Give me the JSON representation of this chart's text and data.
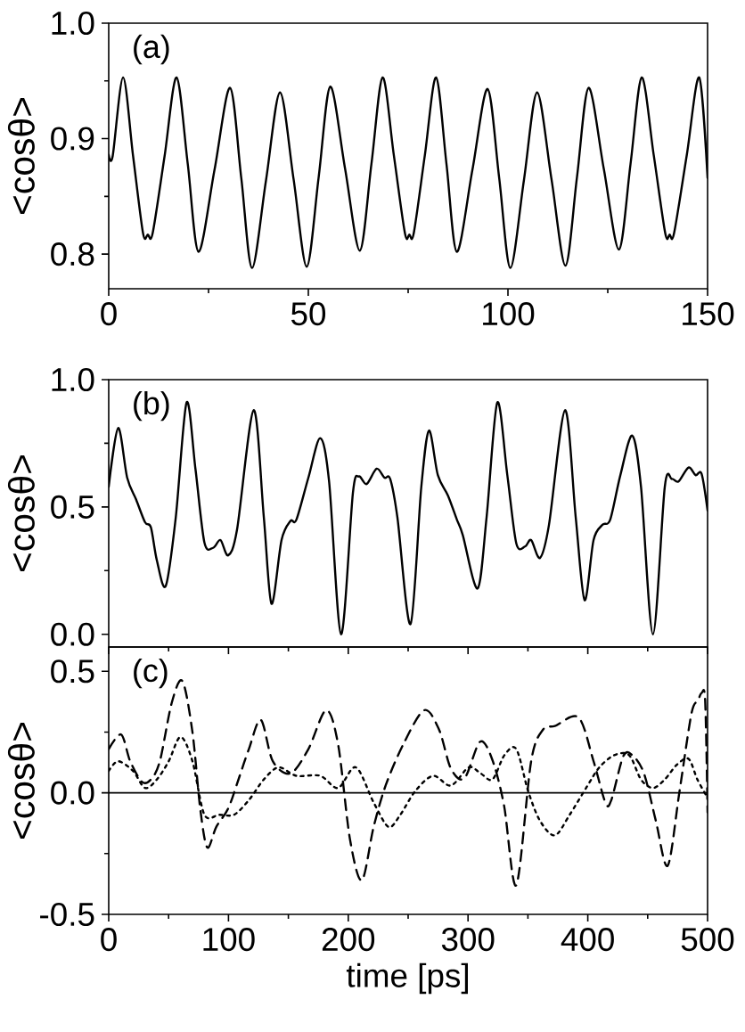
{
  "chart_data": [
    {
      "type": "line",
      "ylabel": "<cosθ>",
      "annotations": [
        "(a)"
      ],
      "xlim": [
        0,
        150
      ],
      "xticks": [
        0,
        50,
        100,
        150
      ],
      "ylim": [
        0.77,
        1.0
      ],
      "yticks": [
        {
          "value": 0.8,
          "label": "0.8"
        },
        {
          "value": 0.9,
          "label": "0.9"
        },
        {
          "value": 1.0,
          "label": "1.0"
        }
      ],
      "series": [
        {
          "color": "#000000",
          "line_style": "solid",
          "x": [
            0,
            1.0,
            3.6,
            6.1,
            8.6,
            9.8,
            11.0,
            14.0,
            17.0,
            19.8,
            22.5,
            26.5,
            30.4,
            33.2,
            35.9,
            39.4,
            42.9,
            46.3,
            49.6,
            52.6,
            55.5,
            59.2,
            62.9,
            65.8,
            68.6,
            71.4,
            74.2,
            75.3,
            76.4,
            79.2,
            82.0,
            84.6,
            87.2,
            91.1,
            94.9,
            97.8,
            100.6,
            104.0,
            107.3,
            110.9,
            114.4,
            117.3,
            120.2,
            124.0,
            127.8,
            130.7,
            133.5,
            136.5,
            139.4,
            140.5,
            141.6,
            144.8,
            147.9,
            150
          ],
          "values": [
            0.886,
            0.885,
            0.953,
            0.885,
            0.818,
            0.817,
            0.818,
            0.885,
            0.953,
            0.878,
            0.802,
            0.873,
            0.944,
            0.866,
            0.788,
            0.864,
            0.94,
            0.865,
            0.789,
            0.867,
            0.945,
            0.874,
            0.803,
            0.878,
            0.953,
            0.886,
            0.818,
            0.817,
            0.818,
            0.886,
            0.953,
            0.878,
            0.802,
            0.873,
            0.943,
            0.866,
            0.788,
            0.864,
            0.94,
            0.865,
            0.79,
            0.867,
            0.944,
            0.874,
            0.804,
            0.878,
            0.953,
            0.886,
            0.818,
            0.817,
            0.818,
            0.886,
            0.953,
            0.866
          ]
        }
      ]
    },
    {
      "type": "line",
      "ylabel": "<cosθ>",
      "annotations": [
        "(b)"
      ],
      "xlim": [
        0,
        500
      ],
      "xticks": [
        0,
        100,
        200,
        300,
        400,
        500
      ],
      "tick_labels": "y",
      "ylim": [
        -0.05,
        1.0
      ],
      "yticks": [
        {
          "value": 0.0,
          "label": "0.0"
        },
        {
          "value": 0.5,
          "label": "0.5"
        },
        {
          "value": 1.0,
          "label": "1.0"
        }
      ],
      "series": [
        {
          "color": "#000000",
          "line_style": "solid",
          "x": [
            0,
            7.9,
            15.4,
            22.8,
            30.3,
            35.2,
            40.2,
            47.6,
            56,
            65,
            72.4,
            79.9,
            87.3,
            93.3,
            99.7,
            107.1,
            121,
            129.5,
            135.9,
            144.3,
            151.8,
            156.7,
            166.7,
            176.6,
            184,
            194,
            203.9,
            208.8,
            215.3,
            223.7,
            230.2,
            235,
            241,
            252,
            261,
            267.4,
            274.8,
            283.2,
            290.7,
            295.6,
            308,
            315.5,
            324.4,
            332.8,
            340.3,
            347.7,
            352.7,
            360.1,
            367.6,
            381,
            389.9,
            397.3,
            404.8,
            412.3,
            418.7,
            427.2,
            437.1,
            444.4,
            454.4,
            464.3,
            470.2,
            475.7,
            484.1,
            490,
            495,
            500
          ],
          "values": [
            0.58,
            0.81,
            0.615,
            0.53,
            0.44,
            0.42,
            0.29,
            0.19,
            0.46,
            0.91,
            0.65,
            0.36,
            0.34,
            0.37,
            0.31,
            0.41,
            0.88,
            0.46,
            0.12,
            0.37,
            0.445,
            0.45,
            0.615,
            0.77,
            0.6,
            0.0,
            0.556,
            0.62,
            0.59,
            0.65,
            0.615,
            0.61,
            0.46,
            0.04,
            0.58,
            0.8,
            0.625,
            0.545,
            0.45,
            0.39,
            0.18,
            0.46,
            0.91,
            0.625,
            0.357,
            0.345,
            0.37,
            0.3,
            0.43,
            0.88,
            0.46,
            0.134,
            0.37,
            0.43,
            0.45,
            0.625,
            0.78,
            0.58,
            0.0,
            0.58,
            0.61,
            0.6,
            0.655,
            0.625,
            0.63,
            0.486
          ]
        }
      ]
    },
    {
      "type": "line",
      "ylabel": "<cosθ>",
      "xlabel": "time [ps]",
      "annotations": [
        "(c)"
      ],
      "xlim": [
        0,
        500
      ],
      "xticks": [
        0,
        100,
        200,
        300,
        400,
        500
      ],
      "ylim": [
        -0.5,
        0.6
      ],
      "yticks": [
        -0.5,
        {
          "value": 0.0,
          "label": "0.0"
        },
        0.5
      ],
      "ref_lines": [
        {
          "axis": "y",
          "value": 0,
          "color": "#000000",
          "line_style": "solid"
        }
      ],
      "series": [
        {
          "color": "#000000",
          "line_style": "dashed",
          "x": [
            0,
            10.4,
            17.9,
            27.8,
            35.2,
            42.7,
            52.6,
            61.5,
            69.9,
            76.4,
            82.3,
            89.8,
            99.7,
            108,
            117,
            127,
            137,
            151.8,
            166.7,
            181.5,
            191.5,
            201.4,
            211.3,
            221.2,
            231.2,
            246,
            263.4,
            275.8,
            285.7,
            297,
            310,
            320,
            330,
            340.3,
            352.7,
            362.6,
            372.5,
            392.3,
            404.8,
            414.7,
            419.6,
            429.6,
            437.1,
            446.9,
            456.8,
            466.7,
            476.6,
            486.5,
            492,
            495,
            498,
            500
          ],
          "values": [
            0.18,
            0.24,
            0.13,
            0.045,
            0.055,
            0.13,
            0.37,
            0.46,
            0.25,
            -0.065,
            -0.225,
            -0.14,
            -0.065,
            0.05,
            0.18,
            0.3,
            0.13,
            0.08,
            0.18,
            0.34,
            0.2,
            -0.19,
            -0.36,
            -0.14,
            0.03,
            0.2,
            0.34,
            0.26,
            0.1,
            0.06,
            0.21,
            0.14,
            -0.05,
            -0.38,
            0.13,
            0.26,
            0.275,
            0.31,
            0.13,
            -0.04,
            -0.03,
            0.15,
            0.155,
            0.08,
            -0.115,
            -0.3,
            0.007,
            0.325,
            0.38,
            0.41,
            0.38,
            -0.08
          ]
        },
        {
          "color": "#000000",
          "line_style": "dotted",
          "x": [
            0,
            7.9,
            20.3,
            30.3,
            40.2,
            50.1,
            60,
            69.9,
            79.9,
            92.3,
            104.7,
            117,
            129.5,
            141.9,
            156.7,
            176.6,
            191.5,
            206.3,
            221.2,
            233.6,
            243.5,
            255.9,
            270.8,
            285.7,
            300.6,
            310.5,
            320.4,
            330.4,
            340.3,
            350.2,
            360.1,
            372.5,
            384.9,
            399.8,
            409.7,
            422.1,
            434.5,
            444.4,
            454.4,
            464.3,
            474.2,
            484.1,
            491.5,
            500
          ],
          "values": [
            0.09,
            0.13,
            0.09,
            0.02,
            0.055,
            0.13,
            0.23,
            0.13,
            -0.09,
            -0.09,
            -0.09,
            -0.03,
            0.055,
            0.105,
            0.07,
            0.07,
            0.02,
            0.105,
            -0.04,
            -0.14,
            -0.09,
            0.007,
            0.07,
            0.03,
            0.105,
            0.08,
            0.055,
            0.155,
            0.18,
            0.007,
            -0.115,
            -0.175,
            -0.09,
            0.03,
            0.105,
            0.155,
            0.155,
            0.055,
            0.02,
            0.055,
            0.115,
            0.14,
            0.055,
            -0.02
          ]
        }
      ]
    }
  ]
}
